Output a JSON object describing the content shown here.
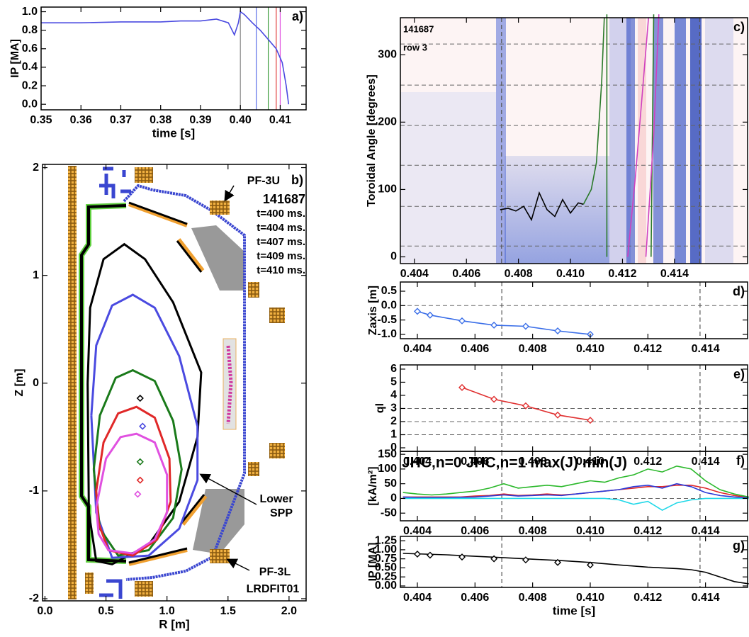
{
  "chart_data": [
    {
      "type": "line",
      "panel_label": "a)",
      "xlabel": "time [s]",
      "ylabel": "IP [MA]",
      "xlim": [
        0.35,
        0.4165
      ],
      "ylim": [
        -0.06,
        1.05
      ],
      "xticks": [
        0.35,
        0.36,
        0.37,
        0.38,
        0.39,
        {
          "value": 0.4,
          "label": "0.40"
        },
        0.41
      ],
      "yticks": [
        {
          "value": 0,
          "label": "0.0"
        },
        0.2,
        0.4,
        0.6,
        0.8,
        {
          "value": 1,
          "label": "1.0"
        }
      ],
      "vlines": {
        "x": [
          0.4,
          0.404,
          0.407,
          0.409,
          0.41
        ],
        "colors": [
          "#888888",
          "#5a6ee8",
          "#3a9a3a",
          "#e04040",
          "#e050e0"
        ],
        "dashed": false
      },
      "series": [
        {
          "color": "#4a4ae0",
          "x": [
            0.35,
            0.36,
            0.37,
            0.38,
            0.385,
            0.39,
            0.394,
            0.397,
            0.3985,
            0.3995,
            0.4,
            0.401,
            0.403,
            0.405,
            0.407,
            0.409,
            0.4105,
            0.4115,
            0.4121
          ],
          "values": [
            0.88,
            0.88,
            0.89,
            0.89,
            0.9,
            0.9,
            0.92,
            0.88,
            0.75,
            0.88,
            1.0,
            0.97,
            0.88,
            0.8,
            0.7,
            0.6,
            0.45,
            0.2,
            0.0
          ]
        }
      ]
    },
    {
      "type": "equilibrium",
      "panel_label": "b)",
      "xlabel": "R [m]",
      "ylabel": "Z [m]",
      "shot": "141687",
      "code": "LRDFIT01",
      "annotations": [
        "PF-3U",
        "Lower",
        "SPP",
        "PF-3L"
      ],
      "xlim": [
        -0.02,
        2.14
      ],
      "ylim": [
        -2.02,
        2.03
      ],
      "xticks": [
        {
          "value": 0,
          "label": "0.0"
        },
        0.5,
        {
          "value": 1,
          "label": "1.0"
        },
        1.5,
        {
          "value": 2,
          "label": "2.0"
        }
      ],
      "yticks": [
        -2,
        -1,
        0,
        1,
        2
      ],
      "series": [
        {
          "name": "t=400 ms.",
          "color": "#000000",
          "axis_r": 0.78,
          "axis_z": -0.14,
          "r": [
            0.35,
            0.37,
            0.48,
            0.65,
            0.82,
            1.05,
            1.28,
            1.25,
            1.1,
            0.85,
            0.55,
            0.42,
            0.36,
            0.35
          ],
          "z": [
            0,
            0.7,
            1.15,
            1.29,
            1.15,
            0.75,
            0.1,
            -0.5,
            -1.1,
            -1.5,
            -1.68,
            -1.65,
            -1.2,
            0
          ]
        },
        {
          "name": "t=404 ms.",
          "color": "#4a4ae0",
          "axis_r": 0.8,
          "axis_z": -0.4,
          "r": [
            0.38,
            0.42,
            0.55,
            0.72,
            0.9,
            1.1,
            1.25,
            1.25,
            1.1,
            0.85,
            0.55,
            0.42,
            0.38
          ],
          "z": [
            -0.3,
            0.35,
            0.72,
            0.82,
            0.7,
            0.25,
            -0.4,
            -0.9,
            -1.35,
            -1.6,
            -1.62,
            -1.2,
            -0.3
          ]
        },
        {
          "name": "t=407 ms.",
          "color": "#1a7a1a",
          "axis_r": 0.78,
          "axis_z": -0.73,
          "r": [
            0.4,
            0.45,
            0.58,
            0.72,
            0.9,
            1.05,
            1.12,
            1.05,
            0.85,
            0.6,
            0.45,
            0.4
          ],
          "z": [
            -0.8,
            -0.3,
            0.05,
            0.12,
            0.02,
            -0.35,
            -0.8,
            -1.25,
            -1.55,
            -1.6,
            -1.35,
            -0.8
          ]
        },
        {
          "name": "t=409 ms.",
          "color": "#e02828",
          "axis_r": 0.78,
          "axis_z": -0.9,
          "r": [
            0.42,
            0.48,
            0.6,
            0.75,
            0.9,
            1.02,
            1.03,
            0.92,
            0.72,
            0.52,
            0.44,
            0.42
          ],
          "z": [
            -1.0,
            -0.55,
            -0.28,
            -0.22,
            -0.32,
            -0.7,
            -1.1,
            -1.45,
            -1.6,
            -1.55,
            -1.3,
            -1.0
          ]
        },
        {
          "name": "t=410 ms.",
          "color": "#e050e0",
          "axis_r": 0.76,
          "axis_z": -1.03,
          "r": [
            0.42,
            0.5,
            0.62,
            0.75,
            0.9,
            1.0,
            1.0,
            0.9,
            0.72,
            0.52,
            0.44,
            0.42
          ],
          "z": [
            -1.15,
            -0.7,
            -0.5,
            -0.47,
            -0.55,
            -0.85,
            -1.2,
            -1.45,
            -1.58,
            -1.55,
            -1.4,
            -1.15
          ]
        }
      ]
    },
    {
      "type": "contour",
      "panel_label": "c)",
      "ylabel": "Toroidal Angle [degrees]",
      "annotations": [
        "141687",
        "row 3"
      ],
      "xlim": [
        0.40346,
        0.41681
      ],
      "ylim": [
        -10,
        355
      ],
      "xticks": [
        0.404,
        0.406,
        0.408,
        {
          "value": 0.41,
          "label": "0.410"
        },
        0.412,
        0.414
      ],
      "yticks": [
        0,
        100,
        200,
        300
      ],
      "hlines": {
        "y": [
          16,
          75,
          136,
          195,
          255,
          316
        ],
        "color": "#666666",
        "dashed": true
      },
      "vlines": {
        "x": [
          0.40735,
          0.41497
        ],
        "colors": [
          "#555555",
          "#555555"
        ],
        "dashed": true
      },
      "series": [
        {
          "color": "#000000",
          "x": [
            0.4073,
            0.4076,
            0.4079,
            0.4082,
            0.4085,
            0.4088,
            0.4091,
            0.4094,
            0.4097,
            0.41,
            0.4103,
            0.4105
          ],
          "values": [
            70,
            72,
            68,
            75,
            55,
            95,
            70,
            60,
            85,
            65,
            80,
            78
          ]
        },
        {
          "color": "#2a7a2a",
          "x": [
            0.4105,
            0.4108,
            0.411,
            0.4112,
            0.4113,
            0.4114,
            0.4114,
            0.4114,
            0.413,
            0.4131,
            0.4132
          ],
          "values": [
            78,
            100,
            140,
            260,
            355,
            null,
            0,
            360,
            null,
            0,
            360
          ]
        },
        {
          "color": "#d040c0",
          "x": [
            0.4122,
            0.4125,
            0.4128,
            0.413,
            0.413,
            0.4129,
            0.4132,
            0.4134
          ],
          "values": [
            0,
            120,
            260,
            355,
            null,
            0,
            180,
            360
          ]
        }
      ]
    },
    {
      "type": "line",
      "panel_label": "d)",
      "ylabel": "Zaxis [m]",
      "xlim": [
        0.40341,
        0.41546
      ],
      "ylim": [
        -1.15,
        0.82
      ],
      "xticks": [
        0.404,
        0.406,
        0.408,
        {
          "value": 0.41,
          "label": "0.410"
        },
        0.412,
        0.414
      ],
      "yticks": [
        0.5,
        {
          "value": 0,
          "label": "0.0"
        },
        -0.5,
        {
          "value": -1,
          "label": "-1.0"
        }
      ],
      "hlines": {
        "y": [
          0
        ],
        "color": "#666666",
        "dashed": true
      },
      "vlines": {
        "x": [
          0.40693,
          0.41381
        ],
        "colors": [
          "#555555",
          "#555555"
        ],
        "dashed": true
      },
      "series": [
        {
          "color": "#3a6ee8",
          "marker": "diamond",
          "x": [
            0.404,
            0.40444,
            0.40555,
            0.40666,
            0.40776,
            0.40887,
            0.41
          ],
          "values": [
            -0.2,
            -0.33,
            -0.53,
            -0.68,
            -0.72,
            -0.88,
            -1.0
          ]
        }
      ]
    },
    {
      "type": "line",
      "panel_label": "e)",
      "ylabel": "ql",
      "xlim": [
        0.40341,
        0.41546
      ],
      "ylim": [
        -0.27,
        6.32
      ],
      "xticks": [
        0.404,
        0.406,
        0.408,
        {
          "value": 0.41,
          "label": "0.410"
        },
        0.412,
        0.414
      ],
      "yticks": [
        0,
        1,
        2,
        3,
        4,
        5,
        6
      ],
      "hlines": {
        "y": [
          1,
          2,
          3
        ],
        "color": "#666666",
        "dashed": true
      },
      "vlines": {
        "x": [
          0.40693,
          0.41381
        ],
        "colors": [
          "#555555",
          "#555555"
        ],
        "dashed": true
      },
      "series": [
        {
          "color": "#e03030",
          "marker": "diamond",
          "x": [
            0.40555,
            0.40666,
            0.40776,
            0.40887,
            0.41
          ],
          "values": [
            4.6,
            3.7,
            3.2,
            2.5,
            2.1
          ]
        }
      ]
    },
    {
      "type": "line",
      "panel_label": "f)",
      "ylabel": "[kA/m²]",
      "xlim": [
        0.40341,
        0.41546
      ],
      "ylim": [
        -76,
        160
      ],
      "xticks": [
        0.404,
        0.406,
        0.408,
        {
          "value": 0.41,
          "label": "0.410"
        },
        0.412,
        0.414
      ],
      "yticks": [
        -50,
        0,
        50,
        100,
        150
      ],
      "hlines": {
        "y": [
          0
        ],
        "color": "#666666",
        "dashed": true
      },
      "vlines": {
        "x": [
          0.40693,
          0.41381
        ],
        "colors": [
          "#555555",
          "#555555"
        ],
        "dashed": true
      },
      "series": [
        {
          "name": "JHC,n=0",
          "color": "#e02828",
          "x": [
            0.4035,
            0.404,
            0.4045,
            0.405,
            0.4055,
            0.406,
            0.4065,
            0.407,
            0.4075,
            0.408,
            0.4085,
            0.409,
            0.4095,
            0.41,
            0.4105,
            0.411,
            0.4115,
            0.412,
            0.4125,
            0.413,
            0.4135,
            0.414,
            0.4145,
            0.415,
            0.4155
          ],
          "values": [
            5,
            5,
            5,
            5,
            5,
            8,
            10,
            15,
            10,
            12,
            15,
            12,
            15,
            20,
            25,
            30,
            35,
            40,
            40,
            45,
            45,
            35,
            20,
            10,
            3
          ]
        },
        {
          "name": "JHC,n=1",
          "color": "#2a3ad8",
          "x": [
            0.4035,
            0.404,
            0.4045,
            0.405,
            0.4055,
            0.406,
            0.4065,
            0.407,
            0.4075,
            0.408,
            0.4085,
            0.409,
            0.4095,
            0.41,
            0.4105,
            0.411,
            0.4115,
            0.412,
            0.4125,
            0.413,
            0.4135,
            0.414,
            0.4145,
            0.415,
            0.4155
          ],
          "values": [
            5,
            3,
            3,
            3,
            4,
            5,
            8,
            12,
            8,
            10,
            12,
            10,
            15,
            20,
            25,
            30,
            40,
            45,
            35,
            50,
            40,
            20,
            10,
            5,
            2
          ]
        },
        {
          "name": "max(J)",
          "color": "#2ab82a",
          "x": [
            0.4035,
            0.404,
            0.4045,
            0.405,
            0.4055,
            0.406,
            0.4065,
            0.407,
            0.4075,
            0.408,
            0.4085,
            0.409,
            0.4095,
            0.41,
            0.4105,
            0.411,
            0.4115,
            0.412,
            0.4125,
            0.413,
            0.4135,
            0.414,
            0.4145,
            0.415,
            0.4155
          ],
          "values": [
            20,
            15,
            12,
            15,
            20,
            25,
            35,
            50,
            35,
            40,
            45,
            40,
            50,
            60,
            55,
            70,
            80,
            100,
            90,
            110,
            100,
            60,
            30,
            15,
            5
          ]
        },
        {
          "name": "min(J)",
          "color": "#20d8e8",
          "x": [
            0.4035,
            0.404,
            0.4045,
            0.405,
            0.4055,
            0.406,
            0.4065,
            0.407,
            0.4075,
            0.408,
            0.4085,
            0.409,
            0.4095,
            0.41,
            0.4105,
            0.411,
            0.4115,
            0.412,
            0.4125,
            0.413,
            0.4135,
            0.414,
            0.4145,
            0.415,
            0.4155
          ],
          "values": [
            0,
            0,
            0,
            0,
            0,
            0,
            0,
            0,
            0,
            0,
            0,
            0,
            0,
            0,
            0,
            -5,
            -20,
            -10,
            -40,
            -15,
            -5,
            0,
            0,
            0,
            0
          ]
        }
      ]
    },
    {
      "type": "line",
      "panel_label": "g)",
      "xlabel": "time [s]",
      "ylabel": "IP [MA]",
      "xlim": [
        0.40341,
        0.41546
      ],
      "ylim": [
        -0.04,
        1.37
      ],
      "xticks": [
        0.404,
        0.406,
        0.408,
        {
          "value": 0.41,
          "label": "0.410"
        },
        0.412,
        0.414
      ],
      "yticks": [
        {
          "value": 0,
          "label": "0.00"
        },
        0.25,
        {
          "value": 0.5,
          "label": "0.50"
        },
        0.75,
        {
          "value": 1,
          "label": "1.00"
        },
        1.25
      ],
      "vlines": {
        "x": [
          0.40693,
          0.41381
        ],
        "colors": [
          "#555555",
          "#555555"
        ],
        "dashed": true
      },
      "series": [
        {
          "color": "#000000",
          "x": [
            0.4035,
            0.405,
            0.406,
            0.407,
            0.408,
            0.409,
            0.41,
            0.411,
            0.412,
            0.413,
            0.4135,
            0.414,
            0.4145,
            0.415,
            0.4155
          ],
          "values": [
            0.9,
            0.86,
            0.82,
            0.78,
            0.74,
            0.7,
            0.65,
            0.58,
            0.52,
            0.48,
            0.45,
            0.38,
            0.25,
            0.12,
            0.06
          ]
        },
        {
          "color": "#000000",
          "marker": "diamond",
          "line": false,
          "x": [
            0.404,
            0.40444,
            0.40555,
            0.40666,
            0.40776,
            0.40887,
            0.41
          ],
          "values": [
            0.88,
            0.85,
            0.8,
            0.75,
            0.72,
            0.65,
            0.58
          ]
        }
      ]
    }
  ]
}
